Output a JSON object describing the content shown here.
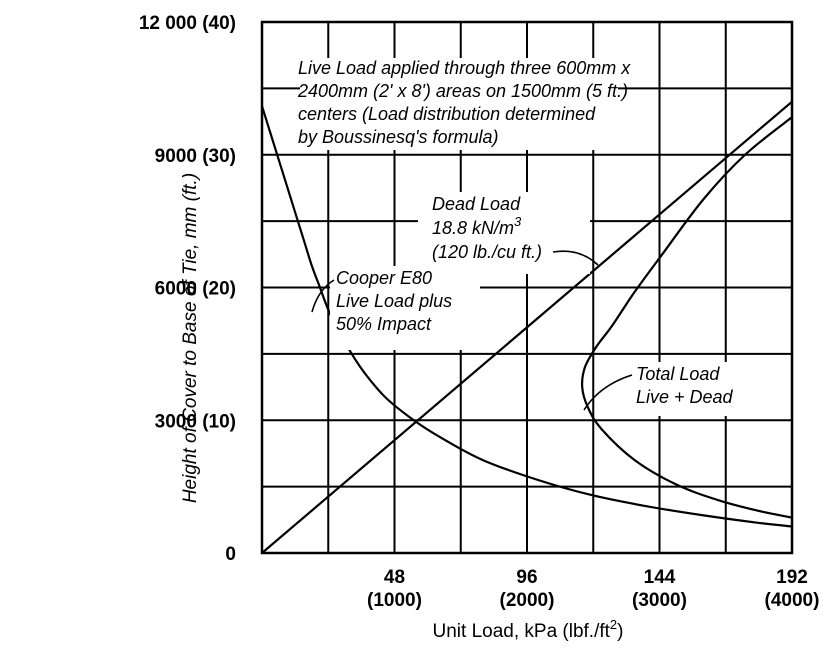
{
  "chart_data": {
    "type": "line",
    "title": "",
    "xlabel": "Unit Load,  kPa (lbf./ft",
    "xlabel_sup": "2",
    "xlabel_close": ")",
    "ylabel": "Height of Cover to Base of Tie, mm (ft.)",
    "xlim": [
      0,
      192
    ],
    "ylim": [
      0,
      12000
    ],
    "x_ticks": [
      {
        "value": 48,
        "label": "48",
        "label2": "(1000)"
      },
      {
        "value": 96,
        "label": "96",
        "label2": "(2000)"
      },
      {
        "value": 144,
        "label": "144",
        "label2": "(3000)"
      },
      {
        "value": 192,
        "label": "192",
        "label2": "(4000)"
      }
    ],
    "y_ticks": [
      {
        "value": 0,
        "label": "0"
      },
      {
        "value": 3000,
        "label": "3000  (10)"
      },
      {
        "value": 6000,
        "label": "6000  (20)"
      },
      {
        "value": 9000,
        "label": "9000  (30)"
      },
      {
        "value": 12000,
        "label": "12 000  (40)"
      }
    ],
    "grid_x": [
      24,
      48,
      72,
      96,
      120,
      144,
      168
    ],
    "grid_y": [
      1500,
      3000,
      4500,
      6000,
      7500,
      9000,
      10500
    ],
    "series": [
      {
        "id": "live",
        "points": [
          [
            0,
            10100
          ],
          [
            3,
            9500
          ],
          [
            6,
            8900
          ],
          [
            9,
            8300
          ],
          [
            12,
            7700
          ],
          [
            15,
            7100
          ],
          [
            18,
            6500
          ],
          [
            21,
            6000
          ],
          [
            24,
            5500
          ],
          [
            28,
            5000
          ],
          [
            33,
            4450
          ],
          [
            38,
            4000
          ],
          [
            45,
            3500
          ],
          [
            55,
            3000
          ],
          [
            65,
            2600
          ],
          [
            80,
            2100
          ],
          [
            100,
            1650
          ],
          [
            120,
            1300
          ],
          [
            140,
            1050
          ],
          [
            160,
            850
          ],
          [
            180,
            680
          ],
          [
            192,
            600
          ]
        ]
      },
      {
        "id": "dead",
        "points": [
          [
            0,
            0
          ],
          [
            192,
            10200
          ]
        ]
      },
      {
        "id": "total",
        "points": [
          [
            192,
            800
          ],
          [
            180,
            950
          ],
          [
            165,
            1200
          ],
          [
            150,
            1550
          ],
          [
            135,
            2100
          ],
          [
            123,
            2800
          ],
          [
            118,
            3300
          ],
          [
            116,
            3750
          ],
          [
            117,
            4200
          ],
          [
            121,
            4650
          ],
          [
            127,
            5150
          ],
          [
            135,
            5900
          ],
          [
            145,
            6750
          ],
          [
            160,
            8000
          ],
          [
            175,
            9000
          ],
          [
            192,
            9850
          ]
        ]
      }
    ],
    "annotations": {
      "live_load": [
        "Live Load applied through three 600mm  x",
        "2400mm  (2' x 8') areas on 1500mm (5  ft.)",
        "centers (Load distribution determined",
        "by Boussinesq's formula)"
      ],
      "dead_load": [
        "Dead Load",
        "18.8  kN/m",
        "(120  lb./cu ft.)"
      ],
      "dead_load_sup": "3",
      "cooper": [
        "Cooper E80",
        "Live Load plus",
        "50% Impact"
      ],
      "total": [
        "Total Load",
        "Live + Dead"
      ]
    }
  }
}
